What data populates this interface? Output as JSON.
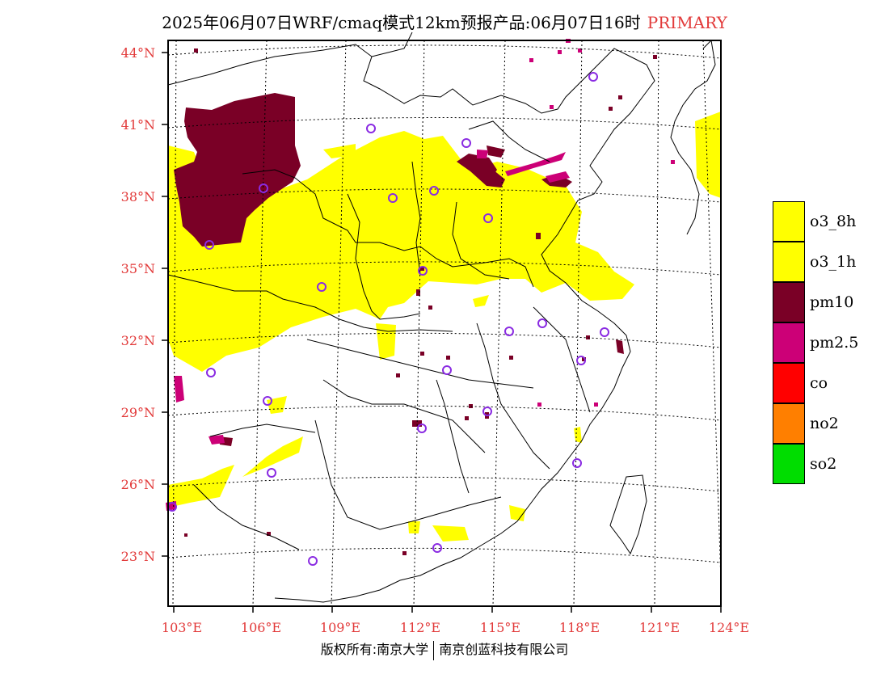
{
  "header": {
    "title": "2025年06月07日WRF/cmaq模式12km预报产品:06月07日16时",
    "tag": "PRIMARY"
  },
  "map": {
    "lat_labels": [
      "44°N",
      "41°N",
      "38°N",
      "35°N",
      "32°N",
      "29°N",
      "26°N",
      "23°N"
    ],
    "lon_labels": [
      "103°E",
      "106°E",
      "109°E",
      "112°E",
      "115°E",
      "118°E",
      "121°E",
      "124°E"
    ]
  },
  "legend": [
    {
      "label": "o3_8h",
      "color": "#ffff00"
    },
    {
      "label": "o3_1h",
      "color": "#ffff00"
    },
    {
      "label": "pm10",
      "color": "#7a0026"
    },
    {
      "label": "pm2.5",
      "color": "#cc0077"
    },
    {
      "label": "co",
      "color": "#ff0000"
    },
    {
      "label": "no2",
      "color": "#ff7f00"
    },
    {
      "label": "so2",
      "color": "#00dd00"
    }
  ],
  "footer": {
    "left": "版权所有:南京大学",
    "right": "南京创蓝科技有限公司"
  }
}
